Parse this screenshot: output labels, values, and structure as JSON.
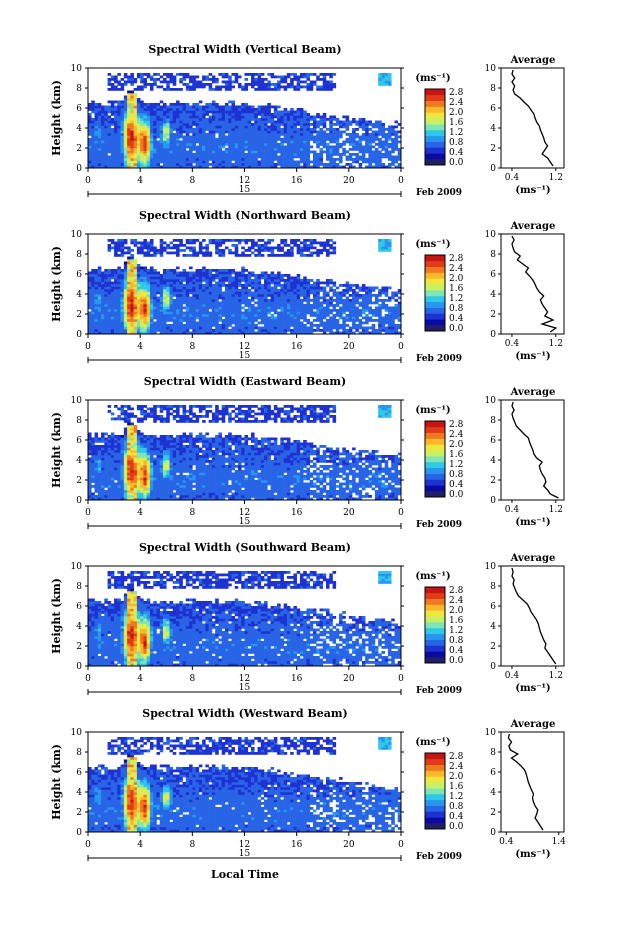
{
  "figure": {
    "xlabel": "Local Time"
  },
  "colorbar": {
    "unit": "(ms⁻¹)",
    "ticks": [
      "0.0",
      "0.4",
      "0.8",
      "1.2",
      "1.6",
      "2.0",
      "2.4",
      "2.8"
    ],
    "colors": [
      "#202060",
      "#0a0aa0",
      "#1e32d2",
      "#2864e6",
      "#2896ee",
      "#30c8e8",
      "#7ee6b4",
      "#c8f064",
      "#f0e640",
      "#f8b828",
      "#f07820",
      "#e03c18",
      "#c81414"
    ]
  },
  "chart_data": [
    {
      "type": "heatmap",
      "title": "Spectral Width (Vertical Beam)",
      "ylabel": "Height (km)",
      "ylim": [
        0,
        10
      ],
      "yticks": [
        "0",
        "2",
        "4",
        "6",
        "8",
        "10"
      ],
      "xlim": [
        0,
        24
      ],
      "xticks": [
        "0",
        "4",
        "8",
        "12",
        "16",
        "20",
        "0"
      ],
      "date_mark": "15",
      "date_label": "Feb 2009",
      "inset": {
        "title": "Average",
        "xlabel": "(ms⁻¹)",
        "xticks": [
          "0.4",
          "1.2"
        ],
        "xlim": [
          0.2,
          1.35
        ],
        "ylim": [
          0,
          10
        ],
        "yticks": [
          "0",
          "2",
          "4",
          "6",
          "8",
          "10"
        ],
        "heights": [
          0.2,
          0.6,
          1.0,
          1.4,
          1.8,
          2.2,
          2.6,
          3.0,
          3.4,
          3.8,
          4.2,
          4.6,
          5.0,
          5.4,
          5.8,
          6.2,
          6.6,
          7.0,
          7.4,
          7.8,
          8.2,
          8.6,
          9.0,
          9.4,
          9.8
        ],
        "values": [
          1.15,
          1.1,
          1.05,
          0.95,
          1.0,
          1.05,
          1.0,
          0.98,
          0.95,
          0.92,
          0.9,
          0.85,
          0.82,
          0.8,
          0.75,
          0.7,
          0.62,
          0.55,
          0.45,
          0.42,
          0.45,
          0.4,
          0.45,
          0.4,
          0.42
        ]
      }
    },
    {
      "type": "heatmap",
      "title": "Spectral Width (Northward Beam)",
      "ylabel": "Height (km)",
      "ylim": [
        0,
        10
      ],
      "yticks": [
        "0",
        "2",
        "4",
        "6",
        "8",
        "10"
      ],
      "xlim": [
        0,
        24
      ],
      "xticks": [
        "0",
        "4",
        "8",
        "12",
        "16",
        "20",
        "0"
      ],
      "date_mark": "15",
      "date_label": "Feb 2009",
      "inset": {
        "title": "Average",
        "xlabel": "(ms⁻¹)",
        "xticks": [
          "0.4",
          "1.2"
        ],
        "xlim": [
          0.2,
          1.35
        ],
        "ylim": [
          0,
          10
        ],
        "yticks": [
          "0",
          "2",
          "4",
          "6",
          "8",
          "10"
        ],
        "heights": [
          0.2,
          0.6,
          1.0,
          1.4,
          1.8,
          2.2,
          2.6,
          3.0,
          3.4,
          3.8,
          4.2,
          4.6,
          5.0,
          5.4,
          5.8,
          6.2,
          6.6,
          7.0,
          7.4,
          7.8,
          8.2,
          8.6,
          9.0,
          9.4,
          9.8
        ],
        "values": [
          1.1,
          1.2,
          0.95,
          1.15,
          1.0,
          1.05,
          1.0,
          0.95,
          0.92,
          0.98,
          0.9,
          0.85,
          0.82,
          0.78,
          0.72,
          0.65,
          0.7,
          0.6,
          0.5,
          0.55,
          0.45,
          0.42,
          0.4,
          0.44,
          0.4
        ]
      }
    },
    {
      "type": "heatmap",
      "title": "Spectral Width (Eastward Beam)",
      "ylabel": "Height (km)",
      "ylim": [
        0,
        10
      ],
      "yticks": [
        "0",
        "2",
        "4",
        "6",
        "8",
        "10"
      ],
      "xlim": [
        0,
        24
      ],
      "xticks": [
        "0",
        "4",
        "8",
        "12",
        "16",
        "20",
        "0"
      ],
      "date_mark": "15",
      "date_label": "Feb 2009",
      "inset": {
        "title": "Average",
        "xlabel": "(ms⁻¹)",
        "xticks": [
          "0.4",
          "1.2"
        ],
        "xlim": [
          0.2,
          1.35
        ],
        "ylim": [
          0,
          10
        ],
        "yticks": [
          "0",
          "2",
          "4",
          "6",
          "8",
          "10"
        ],
        "heights": [
          0.2,
          0.6,
          1.0,
          1.4,
          1.8,
          2.2,
          2.6,
          3.0,
          3.4,
          3.8,
          4.2,
          4.6,
          5.0,
          5.4,
          5.8,
          6.2,
          6.6,
          7.0,
          7.4,
          7.8,
          8.2,
          8.6,
          9.0,
          9.4,
          9.8
        ],
        "values": [
          1.25,
          1.1,
          1.05,
          0.98,
          1.02,
          1.0,
          0.95,
          0.92,
          0.9,
          0.95,
          0.85,
          0.8,
          0.78,
          0.75,
          0.72,
          0.7,
          0.62,
          0.55,
          0.48,
          0.45,
          0.42,
          0.4,
          0.44,
          0.4,
          0.42
        ]
      }
    },
    {
      "type": "heatmap",
      "title": "Spectral Width (Southward Beam)",
      "ylabel": "Height (km)",
      "ylim": [
        0,
        10
      ],
      "yticks": [
        "0",
        "2",
        "4",
        "6",
        "8",
        "10"
      ],
      "xlim": [
        0,
        24
      ],
      "xticks": [
        "0",
        "4",
        "8",
        "12",
        "16",
        "20",
        "0"
      ],
      "date_mark": "15",
      "date_label": "Feb 2009",
      "inset": {
        "title": "Average",
        "xlabel": "(ms⁻¹)",
        "xticks": [
          "0.4",
          "1.2"
        ],
        "xlim": [
          0.2,
          1.35
        ],
        "ylim": [
          0,
          10
        ],
        "yticks": [
          "0",
          "2",
          "4",
          "6",
          "8",
          "10"
        ],
        "heights": [
          0.2,
          0.6,
          1.0,
          1.4,
          1.8,
          2.2,
          2.6,
          3.0,
          3.4,
          3.8,
          4.2,
          4.6,
          5.0,
          5.4,
          5.8,
          6.2,
          6.6,
          7.0,
          7.4,
          7.8,
          8.2,
          8.6,
          9.0,
          9.4,
          9.8
        ],
        "values": [
          1.2,
          1.15,
          1.1,
          1.05,
          1.0,
          1.02,
          0.98,
          0.95,
          0.92,
          0.9,
          0.88,
          0.85,
          0.8,
          0.75,
          0.72,
          0.68,
          0.6,
          0.52,
          0.48,
          0.45,
          0.42,
          0.44,
          0.4,
          0.42,
          0.4
        ]
      }
    },
    {
      "type": "heatmap",
      "title": "Spectral Width (Westward Beam)",
      "ylabel": "Height (km)",
      "ylim": [
        0,
        10
      ],
      "yticks": [
        "0",
        "2",
        "4",
        "6",
        "8",
        "10"
      ],
      "xlim": [
        0,
        24
      ],
      "xticks": [
        "0",
        "4",
        "8",
        "12",
        "16",
        "20",
        "0"
      ],
      "date_mark": "15",
      "date_label": "Feb 2009",
      "inset": {
        "title": "Average",
        "xlabel": "(ms⁻¹)",
        "xticks": [
          "0.4",
          "1.4"
        ],
        "xlim": [
          0.3,
          1.5
        ],
        "ylim": [
          0,
          10
        ],
        "yticks": [
          "0",
          "2",
          "4",
          "6",
          "8",
          "10"
        ],
        "heights": [
          0.2,
          0.6,
          1.0,
          1.4,
          1.8,
          2.2,
          2.6,
          3.0,
          3.4,
          3.8,
          4.2,
          4.6,
          5.0,
          5.4,
          5.8,
          6.2,
          6.6,
          7.0,
          7.4,
          7.8,
          8.2,
          8.6,
          9.0,
          9.4,
          9.8
        ],
        "values": [
          1.1,
          1.05,
          1.0,
          0.95,
          0.98,
          1.0,
          0.95,
          0.92,
          0.9,
          0.92,
          0.88,
          0.85,
          0.82,
          0.8,
          0.78,
          0.75,
          0.68,
          0.6,
          0.5,
          0.62,
          0.48,
          0.45,
          0.5,
          0.44,
          0.46
        ]
      }
    }
  ]
}
